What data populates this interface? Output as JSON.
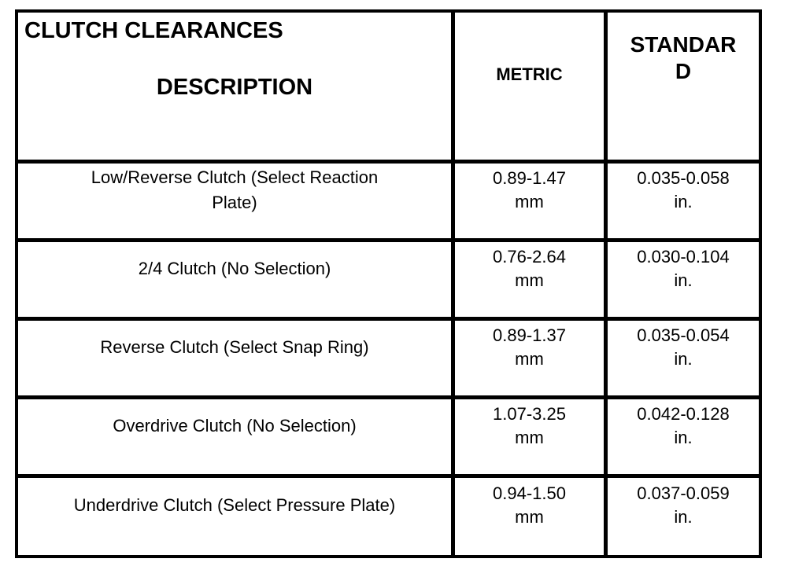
{
  "table": {
    "header": {
      "title": "CLUTCH CLEARANCES",
      "description_label": "DESCRIPTION",
      "metric_label": "METRIC",
      "standard_label": "STANDAR\nD"
    },
    "rows": [
      {
        "description": "Low/Reverse Clutch (Select Reaction\nPlate)",
        "metric_value": "0.89-1.47",
        "metric_unit": "mm",
        "standard_value": "0.035-0.058",
        "standard_unit": "in."
      },
      {
        "description": "2/4 Clutch (No Selection)",
        "metric_value": "0.76-2.64",
        "metric_unit": "mm",
        "standard_value": "0.030-0.104",
        "standard_unit": "in."
      },
      {
        "description": "Reverse Clutch (Select Snap Ring)",
        "metric_value": "0.89-1.37",
        "metric_unit": "mm",
        "standard_value": "0.035-0.054",
        "standard_unit": "in."
      },
      {
        "description": "Overdrive Clutch (No Selection)",
        "metric_value": "1.07-3.25",
        "metric_unit": "mm",
        "standard_value": "0.042-0.128",
        "standard_unit": "in."
      },
      {
        "description": "Underdrive Clutch (Select Pressure Plate)",
        "metric_value": "0.94-1.50",
        "metric_unit": "mm",
        "standard_value": "0.037-0.059",
        "standard_unit": "in."
      }
    ],
    "colors": {
      "border": "#000000",
      "text": "#000000",
      "background": "#ffffff"
    }
  }
}
